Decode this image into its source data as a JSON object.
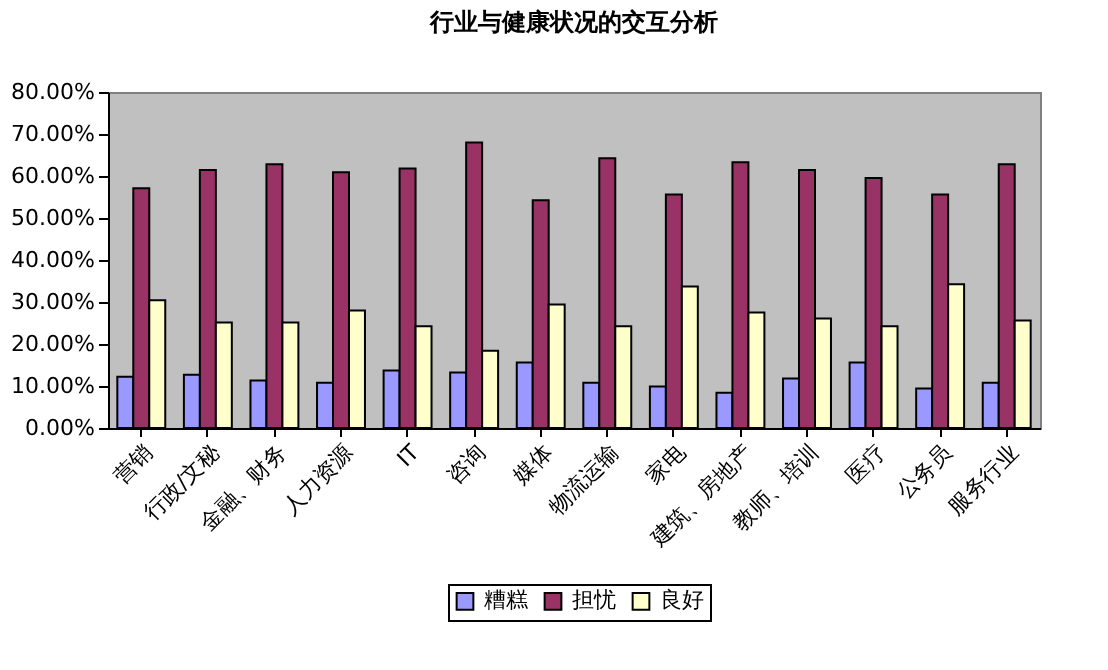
{
  "chart_data": {
    "type": "bar",
    "title": "行业与健康状况的交互分析",
    "categories": [
      "营销",
      "行政/文秘",
      "金融、财务",
      "人力资源",
      "IT",
      "咨询",
      "媒体",
      "物流运输",
      "家电",
      "建筑、房地产",
      "教师、培训",
      "医疗",
      "公务员",
      "服务行业"
    ],
    "series": [
      {
        "name": "糟糕",
        "color": "#9999ff",
        "values": [
          12.2,
          12.7,
          11.3,
          10.8,
          13.7,
          13.2,
          15.6,
          10.8,
          9.9,
          8.4,
          11.8,
          15.6,
          9.4,
          10.8
        ]
      },
      {
        "name": "担忧",
        "color": "#993366",
        "values": [
          57.1,
          61.4,
          62.8,
          60.9,
          61.8,
          68.0,
          54.2,
          64.2,
          55.6,
          63.3,
          61.4,
          59.5,
          55.6,
          62.8
        ]
      },
      {
        "name": "良好",
        "color": "#ffffcc",
        "values": [
          30.4,
          25.1,
          25.1,
          28.0,
          24.2,
          18.4,
          29.4,
          24.2,
          33.7,
          27.5,
          26.1,
          24.2,
          34.2,
          25.6
        ]
      }
    ],
    "ylim": [
      0,
      80
    ],
    "yticks": [
      {
        "value": 0,
        "label": "0.00%"
      },
      {
        "value": 10,
        "label": "10.00%"
      },
      {
        "value": 20,
        "label": "20.00%"
      },
      {
        "value": 30,
        "label": "30.00%"
      },
      {
        "value": 40,
        "label": "40.00%"
      },
      {
        "value": 50,
        "label": "50.00%"
      },
      {
        "value": 60,
        "label": "60.00%"
      },
      {
        "value": 70,
        "label": "70.00%"
      },
      {
        "value": 80,
        "label": "80.00%"
      }
    ],
    "grid": false,
    "legend": "bottom"
  }
}
